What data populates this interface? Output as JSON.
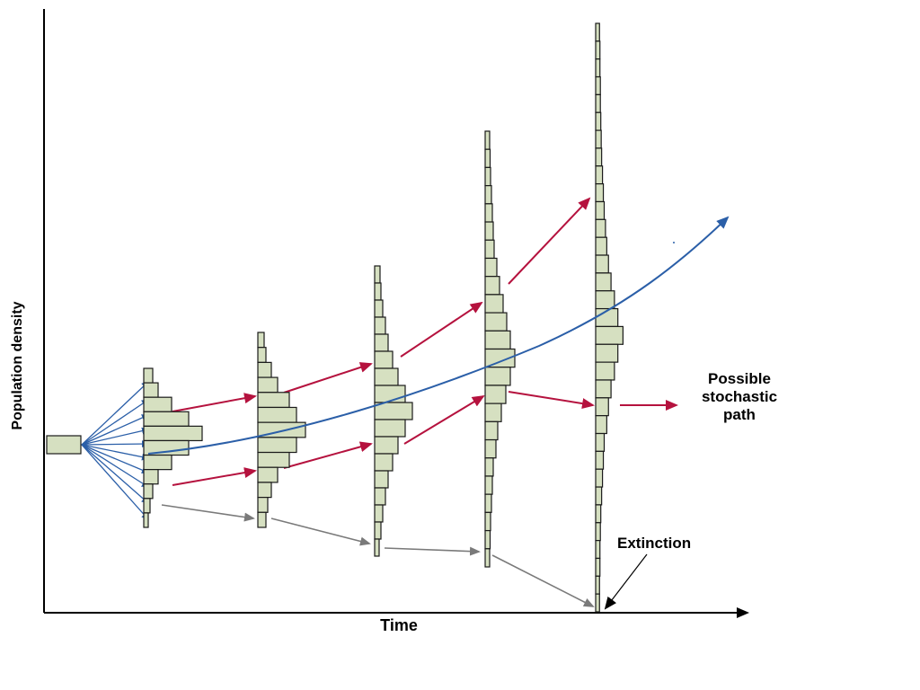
{
  "labels": {
    "y_axis": "Population density",
    "x_axis": "Time",
    "possible_path": [
      "Possible",
      "stochastic",
      "path"
    ],
    "extinction": "Extinction"
  },
  "colors": {
    "bar_fill": "#d6e0c1",
    "bar_stroke": "#1a1a1a",
    "mean_path": "#2b5fa8",
    "possible_path": "#b5123e",
    "extinction_path": "#7a7a7a",
    "axis": "#000000"
  },
  "distributions": [
    {
      "widths": [
        1
      ]
    },
    {
      "widths": [
        1,
        1.6,
        3.1,
        5.0,
        6.5,
        5.0,
        3.1,
        1.6,
        1,
        0.7,
        0.5
      ]
    },
    {
      "widths": [
        0.7,
        0.9,
        1.5,
        2.2,
        3.5,
        4.3,
        5.3,
        4.3,
        3.5,
        2.2,
        1.5,
        1.1,
        0.9
      ]
    },
    {
      "widths": [
        0.6,
        0.7,
        0.9,
        1.2,
        1.5,
        2.0,
        2.6,
        3.4,
        4.2,
        3.4,
        2.6,
        2.0,
        1.5,
        1.2,
        0.9,
        0.7,
        0.5
      ]
    },
    {
      "widths": [
        0.5,
        0.55,
        0.6,
        0.7,
        0.8,
        0.9,
        1.0,
        1.3,
        1.6,
        2.0,
        2.4,
        2.8,
        3.3,
        2.8,
        2.3,
        1.8,
        1.4,
        1.2,
        0.9,
        0.8,
        0.7,
        0.6,
        0.55,
        0.5
      ]
    },
    {
      "widths": [
        0.45,
        0.5,
        0.5,
        0.55,
        0.55,
        0.6,
        0.65,
        0.7,
        0.8,
        0.9,
        1.0,
        1.15,
        1.3,
        1.5,
        1.8,
        2.2,
        2.6,
        3.2,
        2.6,
        2.2,
        1.8,
        1.5,
        1.3,
        1.0,
        0.9,
        0.8,
        0.7,
        0.6,
        0.55,
        0.5,
        0.5,
        0.45,
        0.45
      ]
    }
  ]
}
